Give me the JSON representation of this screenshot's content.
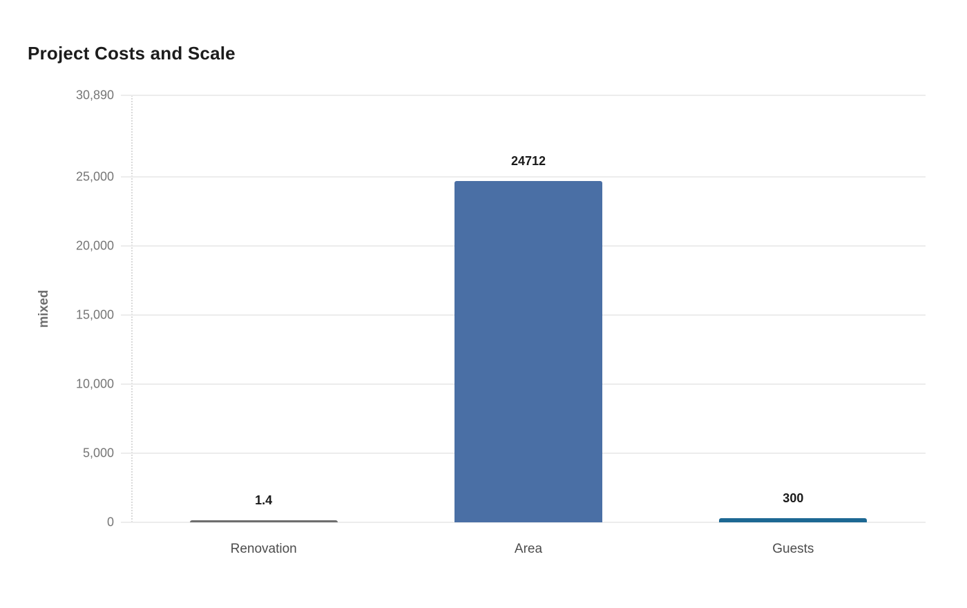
{
  "chart_data": {
    "type": "bar",
    "title": "Project Costs and Scale",
    "ylabel": "mixed",
    "xlabel": "",
    "categories": [
      "Renovation",
      "Area",
      "Guests"
    ],
    "values": [
      1.4,
      24712,
      300
    ],
    "value_labels": [
      "1.4",
      "24712",
      "300"
    ],
    "bar_colors": [
      "#6e6e6e",
      "#4a6fa5",
      "#1d6893"
    ],
    "ylim": [
      0,
      30890
    ],
    "yticks": [
      {
        "value": 0,
        "label": "0"
      },
      {
        "value": 5000,
        "label": "5,000"
      },
      {
        "value": 10000,
        "label": "10,000"
      },
      {
        "value": 15000,
        "label": "15,000"
      },
      {
        "value": 20000,
        "label": "20,000"
      },
      {
        "value": 25000,
        "label": "25,000"
      },
      {
        "value": 30890,
        "label": "30,890"
      }
    ],
    "grid": true,
    "legend_position": "none",
    "colors": {
      "background": "#ffffff",
      "grid": "#ececec",
      "axis_dotted": "#d9d9d9",
      "tick_label": "#767676",
      "category_label": "#4c4c4c",
      "value_label": "#1a1a1a",
      "title": "#1c1c1c"
    }
  }
}
